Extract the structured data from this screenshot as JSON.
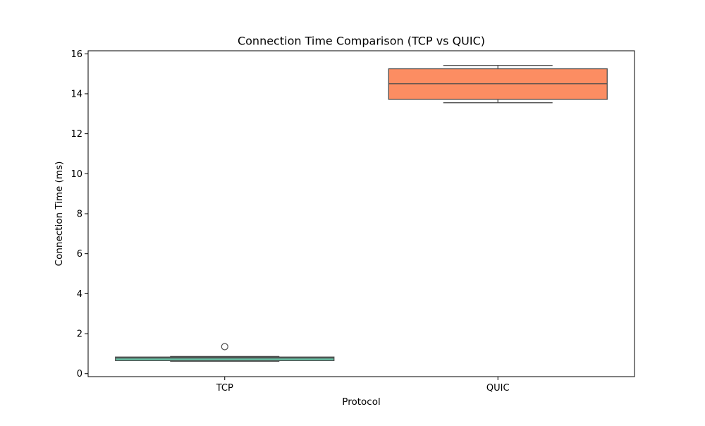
{
  "chart_data": {
    "type": "box",
    "title": "Connection Time Comparison (TCP vs QUIC)",
    "xlabel": "Protocol",
    "ylabel": "Connection Time (ms)",
    "ylim": [
      -0.15,
      16.15
    ],
    "yticks": [
      0,
      2,
      4,
      6,
      8,
      10,
      12,
      14,
      16
    ],
    "categories": [
      "TCP",
      "QUIC"
    ],
    "grid": false,
    "series": [
      {
        "category": "TCP",
        "color": "#66c2a5",
        "whisker_low": 0.62,
        "q1": 0.65,
        "median": 0.78,
        "q3": 0.83,
        "whisker_high": 0.86,
        "outliers": [
          1.35
        ]
      },
      {
        "category": "QUIC",
        "color": "#fc8d62",
        "whisker_low": 13.55,
        "q1": 13.72,
        "median": 14.5,
        "q3": 15.25,
        "whisker_high": 15.42,
        "outliers": []
      }
    ]
  }
}
